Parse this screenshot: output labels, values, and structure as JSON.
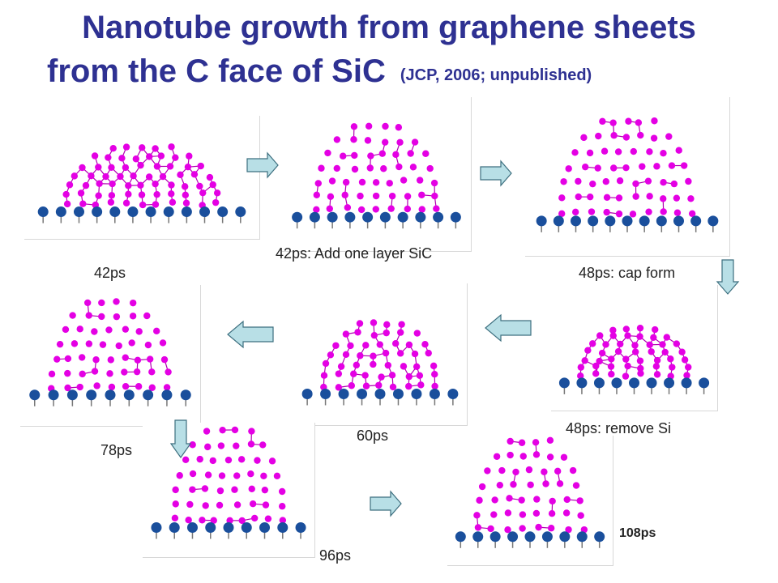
{
  "title": {
    "line1": "Nanotube growth from graphene sheets",
    "line2": "from the C face of SiC",
    "citation": "(JCP, 2006; unpublished)"
  },
  "panels": [
    {
      "label": "42ps",
      "cap_height": 0.62
    },
    {
      "label": "42ps: Add one layer SiC",
      "cap_height": 0.72
    },
    {
      "label": "48ps: cap form",
      "cap_height": 0.78
    },
    {
      "label": "48ps: remove Si",
      "cap_height": 0.5
    },
    {
      "label": "60ps",
      "cap_height": 0.6
    },
    {
      "label": "78ps",
      "cap_height": 0.82
    },
    {
      "label": "96ps",
      "cap_height": 0.9
    },
    {
      "label": "108ps",
      "cap_height": 0.92
    }
  ],
  "colors": {
    "title": "#2e3192",
    "carbon": "#e400e4",
    "silicon": "#1a4f9c",
    "arrow_fill": "#b8dfe6",
    "arrow_stroke": "#3d6f7f"
  }
}
